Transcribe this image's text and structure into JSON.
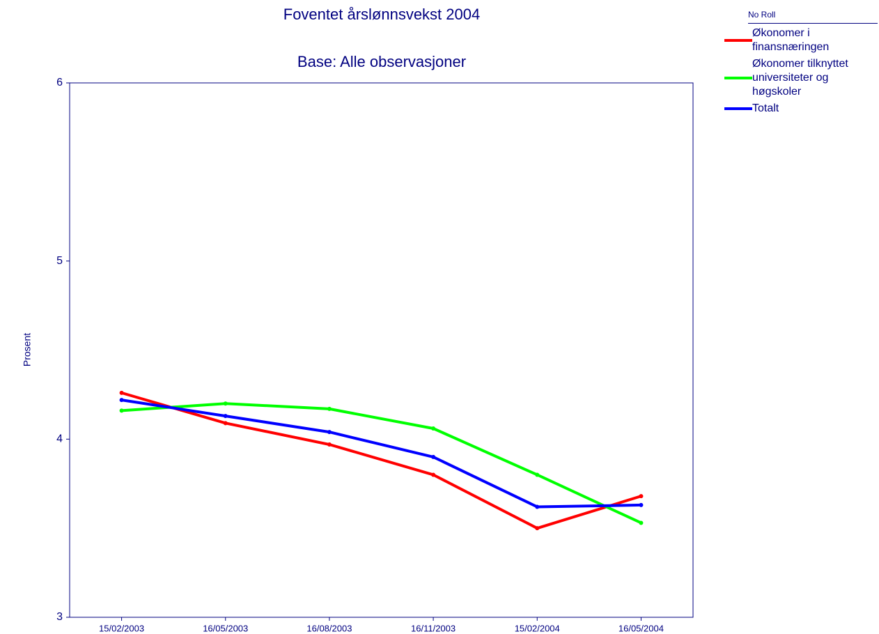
{
  "chart_data": {
    "type": "line",
    "title": "Foventet årslønnsvekst 2004",
    "subtitle": "Base: Alle observasjoner",
    "y_label": "Prosent",
    "legend_title": "No Roll",
    "legend": "right",
    "categories": [
      "15/02/2003",
      "16/05/2003",
      "16/08/2003",
      "16/11/2003",
      "15/02/2004",
      "16/05/2004"
    ],
    "series": [
      {
        "name": "Økonomer i finansnæringen",
        "color": "#ff0000",
        "values": [
          4.26,
          4.09,
          3.97,
          3.8,
          3.5,
          3.68
        ]
      },
      {
        "name": "Økonomer tilknyttet universiteter og høgskoler",
        "color": "#00ff00",
        "values": [
          4.16,
          4.2,
          4.17,
          4.06,
          3.8,
          3.53
        ]
      },
      {
        "name": "Totalt",
        "color": "#0000ff",
        "values": [
          4.22,
          4.13,
          4.04,
          3.9,
          3.62,
          3.63
        ]
      }
    ],
    "ylim": [
      3,
      6
    ],
    "yticks": [
      3,
      4,
      5,
      6
    ],
    "grid": false
  }
}
